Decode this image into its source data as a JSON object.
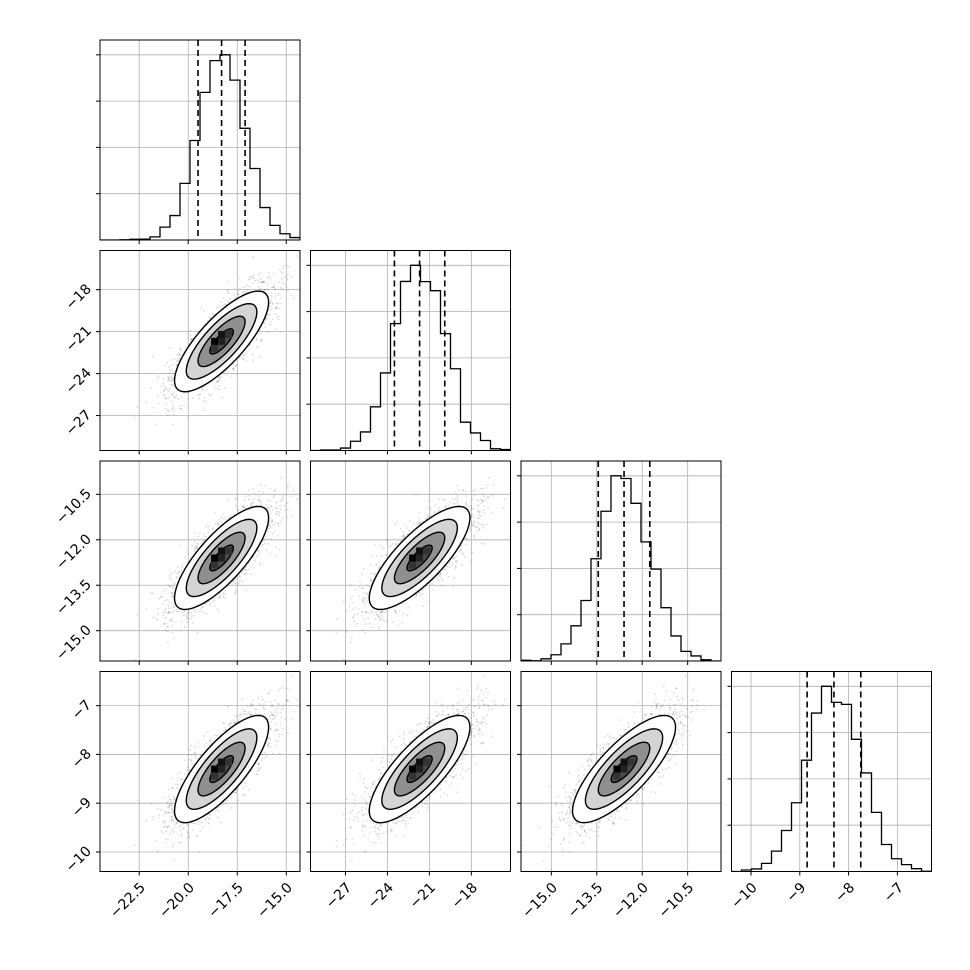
{
  "chart_data": {
    "type": "corner",
    "parameters": [
      {
        "mean": -18.3,
        "std": 1.2,
        "quantiles": [
          -19.5,
          -18.3,
          -17.1
        ],
        "range": [
          -24.5,
          -14.3
        ],
        "ticks": [
          -22.5,
          -20.0,
          -17.5,
          -15.0
        ],
        "tick_labels": [
          "−22.5",
          "−20.0",
          "−17.5",
          "−15.0"
        ]
      },
      {
        "mean": -21.7,
        "std": 1.8,
        "quantiles": [
          -23.5,
          -21.7,
          -19.9
        ],
        "range": [
          -29.5,
          -15.2
        ],
        "ticks": [
          -27,
          -24,
          -21,
          -18
        ],
        "tick_labels": [
          "−27",
          "−24",
          "−21",
          "−18"
        ]
      },
      {
        "mean": -12.6,
        "std": 0.85,
        "quantiles": [
          -13.45,
          -12.6,
          -11.75
        ],
        "range": [
          -16.0,
          -9.4
        ],
        "ticks": [
          -15.0,
          -13.5,
          -12.0,
          -10.5
        ],
        "tick_labels": [
          "−15.0",
          "−13.5",
          "−12.0",
          "−10.5"
        ]
      },
      {
        "mean": -8.3,
        "std": 0.55,
        "quantiles": [
          -8.85,
          -8.3,
          -7.75
        ],
        "range": [
          -10.4,
          -6.3
        ],
        "ticks": [
          -10,
          -9,
          -8,
          -7
        ],
        "tick_labels": [
          "−10",
          "−9",
          "−8",
          "−7"
        ]
      }
    ],
    "correlation": 0.78,
    "n_samples": 5000,
    "grid": true,
    "contour_levels": 4,
    "colors": {
      "points": "#000000",
      "contour_edge": "#000000",
      "hist": "#000000"
    }
  }
}
